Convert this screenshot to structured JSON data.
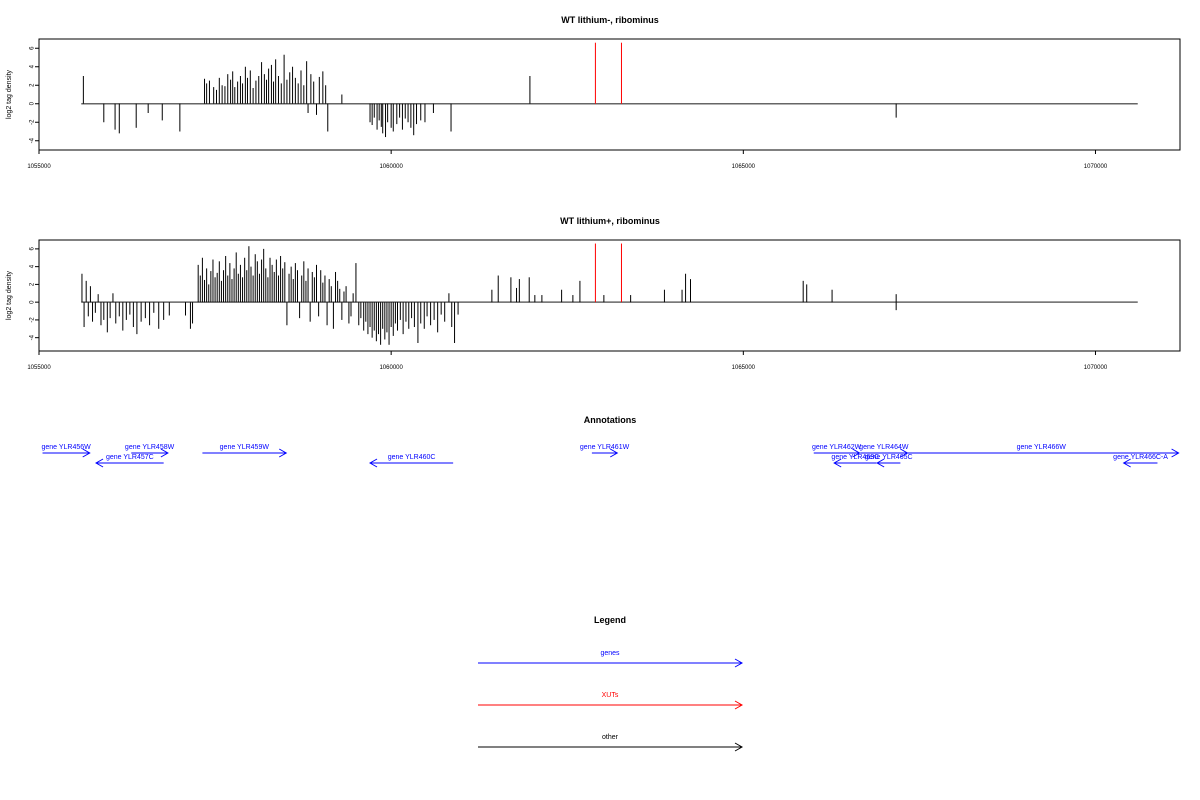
{
  "colors": {
    "genes": "#0000ff",
    "xuts": "#ff0000",
    "other": "#000000",
    "baseline": "#666666"
  },
  "chart_data": [
    {
      "type": "bar",
      "title": "WT lithium-, ribominus",
      "ylabel": "log2 tag density",
      "xlim": [
        1055000,
        1071200
      ],
      "ylim": [
        -5,
        7
      ],
      "baseline_range": [
        1055600,
        1070600
      ],
      "x_ticks": [
        1055000,
        1060000,
        1065000,
        1070000
      ],
      "y_ticks": [
        -4,
        -2,
        0,
        2,
        4,
        6
      ],
      "x_tick_labels": [
        "1055000",
        "1060000",
        "1065000",
        "1070000"
      ],
      "y_tick_labels": [
        "-4",
        "-2",
        "0",
        "2",
        "4",
        "6"
      ],
      "black_bars": [
        [
          1055630,
          3.0
        ],
        [
          1055920,
          -2.0
        ],
        [
          1056080,
          -2.8
        ],
        [
          1056140,
          -3.2
        ],
        [
          1056380,
          -2.6
        ],
        [
          1056550,
          -1.0
        ],
        [
          1056750,
          -1.8
        ],
        [
          1057000,
          -3.0
        ],
        [
          1057350,
          2.7
        ],
        [
          1057380,
          2.2
        ],
        [
          1057420,
          2.5
        ],
        [
          1057480,
          1.8
        ],
        [
          1057520,
          1.5
        ],
        [
          1057560,
          2.8
        ],
        [
          1057600,
          2.0
        ],
        [
          1057640,
          1.9
        ],
        [
          1057680,
          3.2
        ],
        [
          1057720,
          2.6
        ],
        [
          1057750,
          3.5
        ],
        [
          1057780,
          1.8
        ],
        [
          1057820,
          2.4
        ],
        [
          1057860,
          3.0
        ],
        [
          1057890,
          2.2
        ],
        [
          1057930,
          4.0
        ],
        [
          1057960,
          2.8
        ],
        [
          1058000,
          3.6
        ],
        [
          1058040,
          1.7
        ],
        [
          1058080,
          2.5
        ],
        [
          1058120,
          3.0
        ],
        [
          1058160,
          4.5
        ],
        [
          1058200,
          3.2
        ],
        [
          1058230,
          2.6
        ],
        [
          1058260,
          3.8
        ],
        [
          1058300,
          4.2
        ],
        [
          1058330,
          2.4
        ],
        [
          1058360,
          4.8
        ],
        [
          1058400,
          3.0
        ],
        [
          1058440,
          2.2
        ],
        [
          1058480,
          5.3
        ],
        [
          1058520,
          2.6
        ],
        [
          1058560,
          3.4
        ],
        [
          1058600,
          4.0
        ],
        [
          1058640,
          2.8
        ],
        [
          1058680,
          2.2
        ],
        [
          1058720,
          3.6
        ],
        [
          1058760,
          2.0
        ],
        [
          1058800,
          4.6
        ],
        [
          1058820,
          -1.0
        ],
        [
          1058860,
          3.2
        ],
        [
          1058900,
          2.4
        ],
        [
          1058940,
          -1.2
        ],
        [
          1058980,
          2.9
        ],
        [
          1059030,
          3.5
        ],
        [
          1059070,
          2.0
        ],
        [
          1059100,
          -3.0
        ],
        [
          1059300,
          1.0
        ],
        [
          1059700,
          -2.0
        ],
        [
          1059730,
          -2.3
        ],
        [
          1059760,
          -1.5
        ],
        [
          1059800,
          -2.8
        ],
        [
          1059830,
          -1.8
        ],
        [
          1059860,
          -2.5
        ],
        [
          1059880,
          -3.2
        ],
        [
          1059920,
          -3.6
        ],
        [
          1059950,
          -2.0
        ],
        [
          1060000,
          -2.6
        ],
        [
          1060030,
          -3.0
        ],
        [
          1060080,
          -2.2
        ],
        [
          1060120,
          -1.5
        ],
        [
          1060160,
          -2.8
        ],
        [
          1060200,
          -1.6
        ],
        [
          1060240,
          -2.0
        ],
        [
          1060280,
          -2.6
        ],
        [
          1060320,
          -3.4
        ],
        [
          1060360,
          -2.2
        ],
        [
          1060420,
          -1.8
        ],
        [
          1060480,
          -2.0
        ],
        [
          1060600,
          -1.0
        ],
        [
          1060850,
          -3.0
        ],
        [
          1061970,
          3.0
        ],
        [
          1067170,
          -1.5
        ]
      ],
      "red_bars": [
        [
          1062900,
          6.6
        ],
        [
          1063270,
          6.6
        ]
      ]
    },
    {
      "type": "bar",
      "title": "WT lithium+, ribominus",
      "ylabel": "log2 tag density",
      "xlim": [
        1055000,
        1071200
      ],
      "ylim": [
        -5.5,
        7
      ],
      "baseline_range": [
        1055600,
        1070600
      ],
      "x_ticks": [
        1055000,
        1060000,
        1065000,
        1070000
      ],
      "y_ticks": [
        -4,
        -2,
        0,
        2,
        4,
        6
      ],
      "x_tick_labels": [
        "1055000",
        "1060000",
        "1065000",
        "1070000"
      ],
      "y_tick_labels": [
        "-4",
        "-2",
        "0",
        "2",
        "4",
        "6"
      ],
      "black_bars": [
        [
          1055610,
          3.2
        ],
        [
          1055640,
          -2.8
        ],
        [
          1055670,
          2.4
        ],
        [
          1055700,
          -1.6
        ],
        [
          1055730,
          1.8
        ],
        [
          1055760,
          -2.2
        ],
        [
          1055800,
          -1.2
        ],
        [
          1055840,
          0.9
        ],
        [
          1055880,
          -2.6
        ],
        [
          1055920,
          -2.0
        ],
        [
          1055970,
          -3.4
        ],
        [
          1056010,
          -1.8
        ],
        [
          1056050,
          1.0
        ],
        [
          1056090,
          -2.4
        ],
        [
          1056140,
          -1.6
        ],
        [
          1056190,
          -3.2
        ],
        [
          1056240,
          -2.0
        ],
        [
          1056290,
          -1.4
        ],
        [
          1056340,
          -2.8
        ],
        [
          1056390,
          -3.6
        ],
        [
          1056450,
          -2.2
        ],
        [
          1056510,
          -1.8
        ],
        [
          1056570,
          -2.6
        ],
        [
          1056630,
          -1.2
        ],
        [
          1056700,
          -3.0
        ],
        [
          1056770,
          -2.0
        ],
        [
          1056850,
          -1.5
        ],
        [
          1057080,
          -1.5
        ],
        [
          1057150,
          -3.0
        ],
        [
          1057180,
          -2.4
        ],
        [
          1057260,
          4.2
        ],
        [
          1057290,
          3.0
        ],
        [
          1057320,
          5.0
        ],
        [
          1057350,
          2.5
        ],
        [
          1057380,
          3.8
        ],
        [
          1057410,
          2.0
        ],
        [
          1057440,
          3.5
        ],
        [
          1057470,
          4.8
        ],
        [
          1057500,
          2.8
        ],
        [
          1057530,
          3.3
        ],
        [
          1057560,
          4.6
        ],
        [
          1057590,
          2.4
        ],
        [
          1057620,
          3.6
        ],
        [
          1057650,
          5.2
        ],
        [
          1057680,
          3.0
        ],
        [
          1057710,
          4.4
        ],
        [
          1057740,
          2.6
        ],
        [
          1057770,
          3.8
        ],
        [
          1057800,
          5.6
        ],
        [
          1057830,
          3.2
        ],
        [
          1057860,
          4.2
        ],
        [
          1057890,
          2.8
        ],
        [
          1057920,
          5.0
        ],
        [
          1057950,
          3.6
        ],
        [
          1057980,
          6.3
        ],
        [
          1058010,
          4.0
        ],
        [
          1058040,
          3.0
        ],
        [
          1058070,
          5.4
        ],
        [
          1058100,
          4.6
        ],
        [
          1058130,
          3.2
        ],
        [
          1058160,
          4.8
        ],
        [
          1058190,
          6.0
        ],
        [
          1058220,
          3.8
        ],
        [
          1058250,
          2.8
        ],
        [
          1058280,
          5.0
        ],
        [
          1058310,
          4.2
        ],
        [
          1058340,
          3.4
        ],
        [
          1058370,
          4.8
        ],
        [
          1058400,
          3.0
        ],
        [
          1058430,
          5.2
        ],
        [
          1058460,
          3.8
        ],
        [
          1058490,
          4.5
        ],
        [
          1058520,
          -2.6
        ],
        [
          1058550,
          3.2
        ],
        [
          1058580,
          4.0
        ],
        [
          1058610,
          2.6
        ],
        [
          1058640,
          4.4
        ],
        [
          1058670,
          3.6
        ],
        [
          1058700,
          -1.8
        ],
        [
          1058730,
          3.0
        ],
        [
          1058760,
          4.6
        ],
        [
          1058790,
          2.4
        ],
        [
          1058820,
          3.8
        ],
        [
          1058850,
          -2.2
        ],
        [
          1058880,
          3.4
        ],
        [
          1058910,
          2.8
        ],
        [
          1058940,
          4.2
        ],
        [
          1058970,
          -1.6
        ],
        [
          1059000,
          3.6
        ],
        [
          1059030,
          2.2
        ],
        [
          1059060,
          3.0
        ],
        [
          1059090,
          -2.6
        ],
        [
          1059120,
          2.6
        ],
        [
          1059150,
          1.8
        ],
        [
          1059180,
          -3.0
        ],
        [
          1059210,
          3.4
        ],
        [
          1059240,
          2.4
        ],
        [
          1059270,
          1.5
        ],
        [
          1059300,
          -2.0
        ],
        [
          1059330,
          1.2
        ],
        [
          1059360,
          1.8
        ],
        [
          1059400,
          -2.4
        ],
        [
          1059430,
          -1.6
        ],
        [
          1059460,
          1.0
        ],
        [
          1059500,
          4.4
        ],
        [
          1059540,
          -2.6
        ],
        [
          1059570,
          -1.8
        ],
        [
          1059610,
          -3.2
        ],
        [
          1059640,
          -2.2
        ],
        [
          1059670,
          -3.6
        ],
        [
          1059700,
          -2.8
        ],
        [
          1059730,
          -4.0
        ],
        [
          1059760,
          -3.2
        ],
        [
          1059790,
          -4.4
        ],
        [
          1059820,
          -3.6
        ],
        [
          1059850,
          -4.8
        ],
        [
          1059880,
          -3.0
        ],
        [
          1059910,
          -4.2
        ],
        [
          1059940,
          -3.4
        ],
        [
          1059970,
          -4.8
        ],
        [
          1060000,
          -2.8
        ],
        [
          1060030,
          -3.8
        ],
        [
          1060060,
          -2.4
        ],
        [
          1060090,
          -3.2
        ],
        [
          1060130,
          -2.0
        ],
        [
          1060170,
          -3.6
        ],
        [
          1060210,
          -2.2
        ],
        [
          1060250,
          -3.0
        ],
        [
          1060290,
          -1.8
        ],
        [
          1060330,
          -2.8
        ],
        [
          1060380,
          -4.6
        ],
        [
          1060420,
          -2.4
        ],
        [
          1060470,
          -3.0
        ],
        [
          1060510,
          -1.6
        ],
        [
          1060560,
          -2.6
        ],
        [
          1060610,
          -2.0
        ],
        [
          1060660,
          -3.4
        ],
        [
          1060710,
          -1.4
        ],
        [
          1060760,
          -2.2
        ],
        [
          1060820,
          1.0
        ],
        [
          1060860,
          -2.8
        ],
        [
          1060900,
          -4.6
        ],
        [
          1060950,
          -1.4
        ],
        [
          1061430,
          1.4
        ],
        [
          1061520,
          3.0
        ],
        [
          1061700,
          2.8
        ],
        [
          1061780,
          1.6
        ],
        [
          1061820,
          2.6
        ],
        [
          1061960,
          2.8
        ],
        [
          1062040,
          0.8
        ],
        [
          1062140,
          0.8
        ],
        [
          1062420,
          1.4
        ],
        [
          1062580,
          0.8
        ],
        [
          1062680,
          2.4
        ],
        [
          1063020,
          0.8
        ],
        [
          1063400,
          0.8
        ],
        [
          1063880,
          1.4
        ],
        [
          1064130,
          1.4
        ],
        [
          1064180,
          3.2
        ],
        [
          1064250,
          2.6
        ],
        [
          1065850,
          2.4
        ],
        [
          1065900,
          2.0
        ],
        [
          1066260,
          1.4
        ],
        [
          1067170,
          -0.9
        ],
        [
          1067170,
          0.9
        ]
      ],
      "red_bars": [
        [
          1062900,
          6.6
        ],
        [
          1063270,
          6.6
        ]
      ]
    }
  ],
  "annotations": {
    "title": "Annotations",
    "genes": [
      {
        "label": "gene YLR456W",
        "start": 1055050,
        "end": 1055720,
        "dir": "right",
        "lane": 0
      },
      {
        "label": "gene YLR457C",
        "start": 1055810,
        "end": 1056770,
        "dir": "left",
        "lane": 1
      },
      {
        "label": "gene YLR458W",
        "start": 1056310,
        "end": 1056830,
        "dir": "right",
        "lane": 0
      },
      {
        "label": "gene YLR459W",
        "start": 1057320,
        "end": 1058510,
        "dir": "right",
        "lane": 0
      },
      {
        "label": "gene YLR460C",
        "start": 1059700,
        "end": 1060880,
        "dir": "left",
        "lane": 1
      },
      {
        "label": "gene YLR461W",
        "start": 1062850,
        "end": 1063210,
        "dir": "right",
        "lane": 0
      },
      {
        "label": "gene YLR462W",
        "start": 1066000,
        "end": 1066650,
        "dir": "right",
        "lane": 0
      },
      {
        "label": "gene YLR463C",
        "start": 1066290,
        "end": 1066890,
        "dir": "left",
        "lane": 1
      },
      {
        "label": "gene YLR464W",
        "start": 1066660,
        "end": 1067330,
        "dir": "right",
        "lane": 0
      },
      {
        "label": "gene YLR465C",
        "start": 1066900,
        "end": 1067230,
        "dir": "left",
        "lane": 1
      },
      {
        "label": "gene YLR466W",
        "start": 1067280,
        "end": 1071180,
        "dir": "right",
        "lane": 0
      },
      {
        "label": "gene YLR466C-A",
        "start": 1070400,
        "end": 1070880,
        "dir": "left",
        "lane": 1
      }
    ]
  },
  "legend": {
    "title": "Legend",
    "items": [
      {
        "label": "genes",
        "color": "#0000ff"
      },
      {
        "label": "XUTs",
        "color": "#ff0000"
      },
      {
        "label": "other",
        "color": "#000000"
      }
    ]
  }
}
